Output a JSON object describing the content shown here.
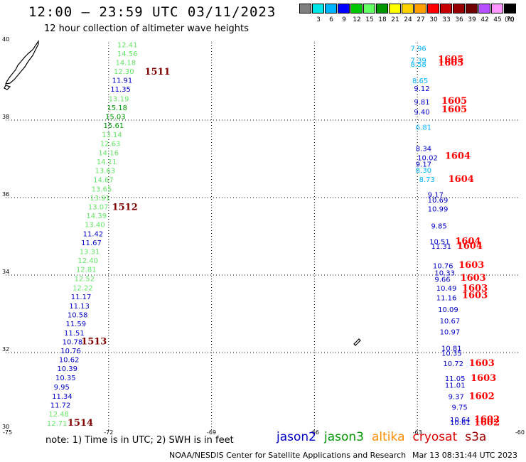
{
  "header": {
    "title": "12:00 – 23:59 UTC 03/11/2023",
    "subtitle": "12 hour collection of altimeter wave heights"
  },
  "colorbar": {
    "unit": "(ft)",
    "bins": [
      {
        "label": "",
        "color": "#808080"
      },
      {
        "label": "3",
        "color": "#00e6e6"
      },
      {
        "label": "6",
        "color": "#00b4ff"
      },
      {
        "label": "9",
        "color": "#0000ff"
      },
      {
        "label": "12",
        "color": "#00c800"
      },
      {
        "label": "15",
        "color": "#64ff64"
      },
      {
        "label": "18",
        "color": "#009600"
      },
      {
        "label": "21",
        "color": "#ffff00"
      },
      {
        "label": "24",
        "color": "#ffd200"
      },
      {
        "label": "27",
        "color": "#ffa000"
      },
      {
        "label": "30",
        "color": "#ff0000"
      },
      {
        "label": "33",
        "color": "#c80000"
      },
      {
        "label": "36",
        "color": "#960000"
      },
      {
        "label": "39",
        "color": "#6e0000"
      },
      {
        "label": "42",
        "color": "#b450ff"
      },
      {
        "label": "45",
        "color": "#ff96ff"
      },
      {
        "label": "70",
        "color": "#000000"
      }
    ]
  },
  "map": {
    "lon_range": [
      -75,
      -60
    ],
    "lat_range": [
      30,
      40
    ],
    "lon_ticks": [
      "-75",
      "-72",
      "-69",
      "-66",
      "-63",
      "-60"
    ],
    "lat_ticks": [
      "40",
      "38",
      "36",
      "34",
      "32",
      "30"
    ],
    "grid": "dotted"
  },
  "colors": {
    "jason2": "#0000c8",
    "jason3": "#009600",
    "altika": "#ff8c00",
    "cryosat": "#dc0000",
    "s3a": "#a00000",
    "t6": "#00b4ff",
    "t12": "#00c800",
    "t15": "#64e664",
    "t18": "#009600",
    "pass": "#800000",
    "passRed": "#ff0000"
  },
  "tracks": [
    {
      "name": "west",
      "observations": [
        {
          "text": "12.41",
          "lon": -71.75,
          "lat": 39.88,
          "c": "t15"
        },
        {
          "text": "14.56",
          "lon": -71.75,
          "lat": 39.65,
          "c": "t15"
        },
        {
          "text": "14.18",
          "lon": -71.8,
          "lat": 39.42,
          "c": "t15"
        },
        {
          "text": "12.30",
          "lon": -71.85,
          "lat": 39.19,
          "c": "t15"
        },
        {
          "text": "11.91",
          "lon": -71.9,
          "lat": 38.96,
          "c": "jason2"
        },
        {
          "text": "11.35",
          "lon": -71.95,
          "lat": 38.73,
          "c": "jason2"
        },
        {
          "text": "13.19",
          "lon": -72.0,
          "lat": 38.49,
          "c": "t15"
        },
        {
          "text": "15.18",
          "lon": -72.05,
          "lat": 38.26,
          "c": "t18"
        },
        {
          "text": "15.03",
          "lon": -72.1,
          "lat": 38.03,
          "c": "t18"
        },
        {
          "text": "15.61",
          "lon": -72.15,
          "lat": 37.8,
          "c": "t18"
        },
        {
          "text": "13.14",
          "lon": -72.2,
          "lat": 37.56,
          "c": "t15"
        },
        {
          "text": "12.63",
          "lon": -72.25,
          "lat": 37.33,
          "c": "t15"
        },
        {
          "text": "14.16",
          "lon": -72.3,
          "lat": 37.09,
          "c": "t15"
        },
        {
          "text": "14.11",
          "lon": -72.35,
          "lat": 36.86,
          "c": "t15"
        },
        {
          "text": "13.63",
          "lon": -72.4,
          "lat": 36.63,
          "c": "t15"
        },
        {
          "text": "14.67",
          "lon": -72.45,
          "lat": 36.39,
          "c": "t15"
        },
        {
          "text": "13.65",
          "lon": -72.5,
          "lat": 36.16,
          "c": "t15"
        },
        {
          "text": "13.91",
          "lon": -72.55,
          "lat": 35.93,
          "c": "t15"
        },
        {
          "text": "13.07",
          "lon": -72.6,
          "lat": 35.7,
          "c": "t15"
        },
        {
          "text": "14.39",
          "lon": -72.65,
          "lat": 35.47,
          "c": "t15"
        },
        {
          "text": "13.40",
          "lon": -72.7,
          "lat": 35.24,
          "c": "t15"
        },
        {
          "text": "11.42",
          "lon": -72.75,
          "lat": 35.0,
          "c": "jason2"
        },
        {
          "text": "11.67",
          "lon": -72.8,
          "lat": 34.77,
          "c": "jason2"
        },
        {
          "text": "13.31",
          "lon": -72.85,
          "lat": 34.54,
          "c": "t15"
        },
        {
          "text": "12.40",
          "lon": -72.9,
          "lat": 34.31,
          "c": "t15"
        },
        {
          "text": "12.81",
          "lon": -72.95,
          "lat": 34.08,
          "c": "t15"
        },
        {
          "text": "12.52",
          "lon": -73.0,
          "lat": 33.84,
          "c": "t15"
        },
        {
          "text": "12.22",
          "lon": -73.05,
          "lat": 33.61,
          "c": "t15"
        },
        {
          "text": "11.17",
          "lon": -73.1,
          "lat": 33.38,
          "c": "jason2"
        },
        {
          "text": "11.13",
          "lon": -73.15,
          "lat": 33.14,
          "c": "jason2"
        },
        {
          "text": "10.58",
          "lon": -73.2,
          "lat": 32.91,
          "c": "jason2"
        },
        {
          "text": "11.59",
          "lon": -73.25,
          "lat": 32.68,
          "c": "jason2"
        },
        {
          "text": "11.51",
          "lon": -73.3,
          "lat": 32.44,
          "c": "jason2"
        },
        {
          "text": "10.78",
          "lon": -73.35,
          "lat": 32.21,
          "c": "jason2"
        },
        {
          "text": "10.76",
          "lon": -73.4,
          "lat": 31.98,
          "c": "jason2"
        },
        {
          "text": "10.62",
          "lon": -73.45,
          "lat": 31.75,
          "c": "jason2"
        },
        {
          "text": "10.39",
          "lon": -73.5,
          "lat": 31.52,
          "c": "jason2"
        },
        {
          "text": "10.35",
          "lon": -73.55,
          "lat": 31.28,
          "c": "jason2"
        },
        {
          "text": "9.95",
          "lon": -73.6,
          "lat": 31.05,
          "c": "jason2"
        },
        {
          "text": "11.34",
          "lon": -73.65,
          "lat": 30.81,
          "c": "jason2"
        },
        {
          "text": "11.72",
          "lon": -73.7,
          "lat": 30.58,
          "c": "jason2"
        },
        {
          "text": "12.48",
          "lon": -73.75,
          "lat": 30.35,
          "c": "t15"
        },
        {
          "text": "12.71",
          "lon": -73.8,
          "lat": 30.11,
          "c": "t15"
        }
      ],
      "passes": [
        {
          "text": "1511",
          "lon": -70.95,
          "lat": 39.17,
          "c": "pass"
        },
        {
          "text": "1512",
          "lon": -71.9,
          "lat": 35.68,
          "c": "pass"
        },
        {
          "text": "1513",
          "lon": -72.8,
          "lat": 32.21,
          "c": "pass"
        },
        {
          "text": "1514",
          "lon": -73.2,
          "lat": 30.11,
          "c": "pass"
        }
      ]
    },
    {
      "name": "east",
      "observations": [
        {
          "text": "7.96",
          "lon": -63.2,
          "lat": 39.79,
          "c": "t6"
        },
        {
          "text": "7.39",
          "lon": -63.2,
          "lat": 39.48,
          "c": "t6"
        },
        {
          "text": "8.58",
          "lon": -63.2,
          "lat": 39.38,
          "c": "t6"
        },
        {
          "text": "8.65",
          "lon": -63.15,
          "lat": 38.95,
          "c": "t6"
        },
        {
          "text": "9.12",
          "lon": -63.1,
          "lat": 38.75,
          "c": "jason2"
        },
        {
          "text": "9.81",
          "lon": -63.1,
          "lat": 38.4,
          "c": "jason2"
        },
        {
          "text": "9.40",
          "lon": -63.1,
          "lat": 38.15,
          "c": "jason2"
        },
        {
          "text": "6.81",
          "lon": -63.05,
          "lat": 37.75,
          "c": "t6"
        },
        {
          "text": "8.34",
          "lon": -63.05,
          "lat": 37.2,
          "c": "jason2"
        },
        {
          "text": "10.02",
          "lon": -63.0,
          "lat": 36.96,
          "c": "jason2"
        },
        {
          "text": "9.17",
          "lon": -63.05,
          "lat": 36.8,
          "c": "jason2"
        },
        {
          "text": "8.30",
          "lon": -63.05,
          "lat": 36.64,
          "c": "t6"
        },
        {
          "text": "8.73",
          "lon": -62.95,
          "lat": 36.4,
          "c": "t6"
        },
        {
          "text": "9.17",
          "lon": -62.7,
          "lat": 36.01,
          "c": "jason2"
        },
        {
          "text": "10.69",
          "lon": -62.7,
          "lat": 35.87,
          "c": "jason2"
        },
        {
          "text": "10.99",
          "lon": -62.7,
          "lat": 35.64,
          "c": "jason2"
        },
        {
          "text": "9.85",
          "lon": -62.6,
          "lat": 35.2,
          "c": "jason2"
        },
        {
          "text": "10.51",
          "lon": -62.65,
          "lat": 34.8,
          "c": "jason2"
        },
        {
          "text": "11.31",
          "lon": -62.6,
          "lat": 34.68,
          "c": "jason2"
        },
        {
          "text": "10.76",
          "lon": -62.55,
          "lat": 34.17,
          "c": "jason2"
        },
        {
          "text": "10.33",
          "lon": -62.5,
          "lat": 33.99,
          "c": "jason2"
        },
        {
          "text": "9.66",
          "lon": -62.5,
          "lat": 33.83,
          "c": "jason2"
        },
        {
          "text": "10.49",
          "lon": -62.45,
          "lat": 33.6,
          "c": "jason2"
        },
        {
          "text": "11.16",
          "lon": -62.45,
          "lat": 33.35,
          "c": "jason2"
        },
        {
          "text": "10.09",
          "lon": -62.4,
          "lat": 33.05,
          "c": "jason2"
        },
        {
          "text": "10.67",
          "lon": -62.35,
          "lat": 32.75,
          "c": "jason2"
        },
        {
          "text": "10.97",
          "lon": -62.35,
          "lat": 32.47,
          "c": "jason2"
        },
        {
          "text": "10.81",
          "lon": -62.3,
          "lat": 32.05,
          "c": "jason2"
        },
        {
          "text": "10.35",
          "lon": -62.3,
          "lat": 31.92,
          "c": "jason2"
        },
        {
          "text": "10.72",
          "lon": -62.25,
          "lat": 31.65,
          "c": "jason2"
        },
        {
          "text": "11.05",
          "lon": -62.2,
          "lat": 31.27,
          "c": "jason2"
        },
        {
          "text": "11.01",
          "lon": -62.2,
          "lat": 31.09,
          "c": "jason2"
        },
        {
          "text": "9.37",
          "lon": -62.1,
          "lat": 30.8,
          "c": "jason2"
        },
        {
          "text": "9.75",
          "lon": -62.0,
          "lat": 30.52,
          "c": "jason2"
        },
        {
          "text": "10.64",
          "lon": -62.05,
          "lat": 30.2,
          "c": "jason2"
        },
        {
          "text": "10.61",
          "lon": -62.05,
          "lat": 30.13,
          "c": "jason2"
        }
      ],
      "passes": [
        {
          "text": "1605",
          "lon": -62.4,
          "lat": 39.5,
          "c": "passRed"
        },
        {
          "text": "1605",
          "lon": -62.4,
          "lat": 39.4,
          "c": "passRed"
        },
        {
          "text": "1605",
          "lon": -62.3,
          "lat": 38.42,
          "c": "passRed"
        },
        {
          "text": "1605",
          "lon": -62.3,
          "lat": 38.2,
          "c": "passRed"
        },
        {
          "text": "1604",
          "lon": -62.2,
          "lat": 37.0,
          "c": "passRed"
        },
        {
          "text": "1604",
          "lon": -62.1,
          "lat": 36.4,
          "c": "passRed"
        },
        {
          "text": "1604",
          "lon": -61.9,
          "lat": 34.8,
          "c": "passRed"
        },
        {
          "text": "1604",
          "lon": -61.85,
          "lat": 34.68,
          "c": "passRed"
        },
        {
          "text": "1603",
          "lon": -61.8,
          "lat": 34.18,
          "c": "passRed"
        },
        {
          "text": "1603",
          "lon": -61.75,
          "lat": 33.85,
          "c": "passRed"
        },
        {
          "text": "1603",
          "lon": -61.7,
          "lat": 33.59,
          "c": "passRed"
        },
        {
          "text": "1603",
          "lon": -61.7,
          "lat": 33.4,
          "c": "passRed"
        },
        {
          "text": "1603",
          "lon": -61.5,
          "lat": 31.65,
          "c": "passRed"
        },
        {
          "text": "1603",
          "lon": -61.45,
          "lat": 31.27,
          "c": "passRed"
        },
        {
          "text": "1602",
          "lon": -61.5,
          "lat": 30.8,
          "c": "passRed"
        },
        {
          "text": "1602",
          "lon": -61.35,
          "lat": 30.2,
          "c": "passRed"
        },
        {
          "text": "1602",
          "lon": -61.35,
          "lat": 30.12,
          "c": "passRed"
        }
      ]
    }
  ],
  "footer": {
    "note": "note:  1) Time is in UTC;  2) SWH is in feet",
    "legend": [
      {
        "label": "jason2",
        "c": "jason2"
      },
      {
        "label": "jason3",
        "c": "jason3"
      },
      {
        "label": "altika",
        "c": "altika"
      },
      {
        "label": "cryosat",
        "c": "cryosat"
      },
      {
        "label": "s3a",
        "c": "s3a"
      }
    ],
    "credit": "NOAA/NESDIS Center for Satellite Applications and Research",
    "timestamp": "Mar 13 08:31:44 UTC 2023"
  }
}
